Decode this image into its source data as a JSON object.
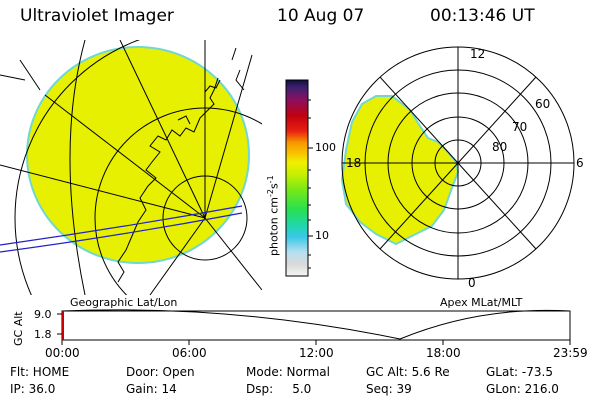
{
  "header": {
    "instrument": "Ultraviolet Imager",
    "date": "10 Aug 07",
    "time": "00:13:46 UT"
  },
  "colorbar": {
    "unit_label": "photon cm",
    "unit_sup1": "-2",
    "unit_s": "s",
    "unit_sup2": "-1",
    "tick_100": "100",
    "tick_10": "10"
  },
  "polar_labels": {
    "mlt_12": "12",
    "mlt_18": "18",
    "mlt_6": "6",
    "mlt_0": "0",
    "lat_60": "60",
    "lat_70": "70",
    "lat_80": "80"
  },
  "panel_labels": {
    "geographic": "Geographic Lat/Lon",
    "apex": "Apex MLat/MLT"
  },
  "altitude_plot": {
    "ylabel": "GC Alt",
    "ytick_top": "9.0",
    "ytick_bottom": "1.8",
    "xticks": [
      "00:00",
      "06:00",
      "12:00",
      "18:00",
      "23:59"
    ]
  },
  "status": {
    "flt": "Flt: HOME",
    "ip": "IP: 36.0",
    "door": "Door: Open",
    "gain": "Gain: 14",
    "mode": "Mode: Normal",
    "dsp": "Dsp:     5.0",
    "gc_alt": "GC Alt: 5.6 Re",
    "seq": "Seq: 39",
    "glat": "GLat: -73.5",
    "glon": "GLon: 216.0"
  },
  "colors": {
    "fill": "#e6f000",
    "rim": "#70d8d0",
    "marker": "#cc0000",
    "orbit": "#2020c8"
  }
}
